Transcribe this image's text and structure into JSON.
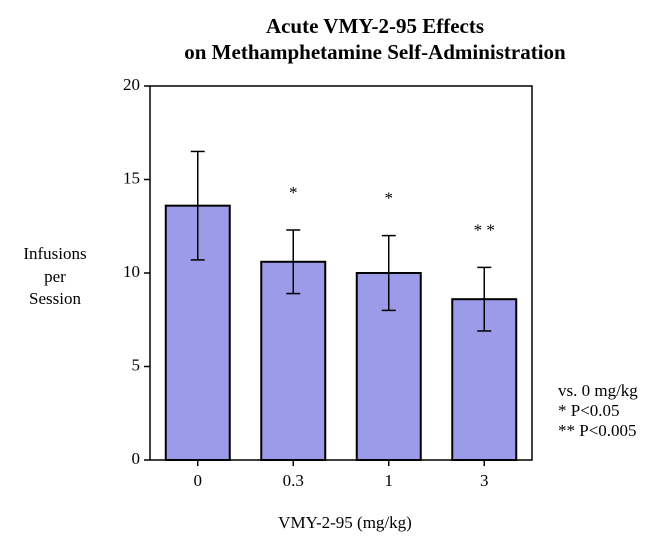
{
  "chart_data": {
    "type": "bar",
    "title": [
      "Acute VMY-2-95 Effects",
      "on Methamphetamine  Self-Administration"
    ],
    "y_label": [
      "Infusions",
      "per",
      "Session"
    ],
    "x_label": "VMY-2-95 (mg/kg)",
    "categories": [
      "0",
      "0.3",
      "1",
      "3"
    ],
    "values": [
      13.6,
      10.6,
      10.0,
      8.6
    ],
    "errors": [
      2.9,
      1.7,
      2.0,
      1.7
    ],
    "significance": [
      null,
      "*",
      "*",
      "* *"
    ],
    "note": [
      "vs. 0 mg/kg",
      "*   P<0.05",
      "** P<0.005"
    ],
    "color": "#9b9bea",
    "ylim": [
      0,
      20
    ],
    "yticks": [
      0,
      5,
      10,
      15,
      20
    ]
  }
}
